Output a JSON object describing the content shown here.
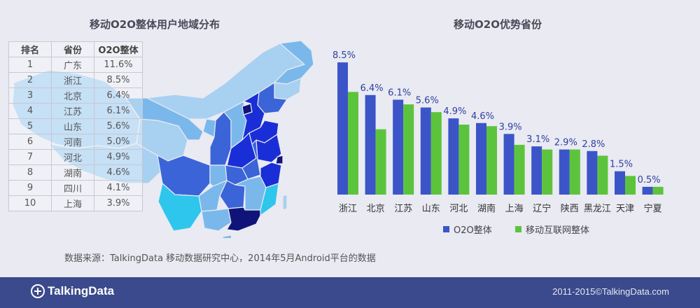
{
  "left_panel": {
    "title": "移动O2O整体用户地域分布",
    "table": {
      "headers": [
        "排名",
        "省份",
        "O2O整体"
      ],
      "rows": [
        [
          "1",
          "广东",
          "11.6%"
        ],
        [
          "2",
          "浙江",
          "8.5%"
        ],
        [
          "3",
          "北京",
          "6.4%"
        ],
        [
          "4",
          "江苏",
          "6.1%"
        ],
        [
          "5",
          "山东",
          "5.6%"
        ],
        [
          "6",
          "河南",
          "5.0%"
        ],
        [
          "7",
          "河北",
          "4.9%"
        ],
        [
          "8",
          "湖南",
          "4.6%"
        ],
        [
          "9",
          "四川",
          "4.1%"
        ],
        [
          "10",
          "上海",
          "3.9%"
        ]
      ]
    },
    "map_colors": [
      "#a8d0f0",
      "#7ab8ec",
      "#2ec6ec",
      "#3a64d8",
      "#1a2ed8",
      "#10147a"
    ]
  },
  "right_panel": {
    "title": "移动O2O优势省份"
  },
  "chart_data": {
    "type": "bar",
    "categories": [
      "浙江",
      "北京",
      "江苏",
      "山东",
      "河北",
      "湖南",
      "上海",
      "辽宁",
      "陕西",
      "黑龙江",
      "天津",
      "宁夏"
    ],
    "series": [
      {
        "name": "O2O整体",
        "values": [
          8.5,
          6.4,
          6.1,
          5.6,
          4.9,
          4.6,
          3.9,
          3.1,
          2.9,
          2.8,
          1.5,
          0.5
        ],
        "labels": [
          "8.5%",
          "6.4%",
          "6.1%",
          "5.6%",
          "4.9%",
          "4.6%",
          "3.9%",
          "3.1%",
          "2.9%",
          "2.8%",
          "1.5%",
          "0.5%"
        ],
        "color": "#3b55c8"
      },
      {
        "name": "移动互联网整体",
        "values": [
          6.6,
          4.2,
          5.8,
          5.3,
          4.5,
          4.4,
          3.2,
          2.9,
          2.9,
          2.5,
          1.2,
          0.5
        ],
        "color": "#5cc43c"
      }
    ],
    "ylim": [
      0,
      9
    ],
    "grid": false,
    "legend": "bottom"
  },
  "source_note": "数据来源：TalkingData 移动数据研究中心，2014年5月Android平台的数据",
  "footer": {
    "logo_text": "TalkingData",
    "copyright": "2011-2015©TalkingData.com"
  }
}
